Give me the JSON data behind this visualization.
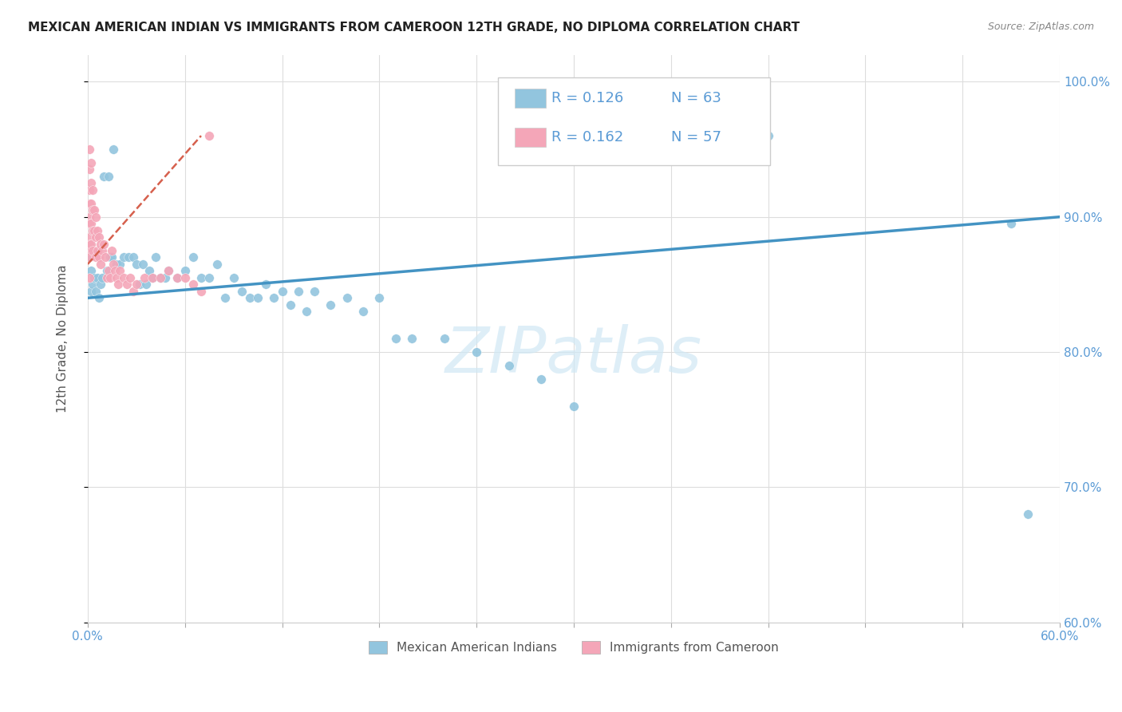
{
  "title": "MEXICAN AMERICAN INDIAN VS IMMIGRANTS FROM CAMEROON 12TH GRADE, NO DIPLOMA CORRELATION CHART",
  "source": "Source: ZipAtlas.com",
  "ylabel": "12th Grade, No Diploma",
  "legend_blue_r": "R = 0.126",
  "legend_blue_n": "N = 63",
  "legend_pink_r": "R = 0.162",
  "legend_pink_n": "N = 57",
  "blue_color": "#92c5de",
  "pink_color": "#f4a6b8",
  "blue_line_color": "#4393c3",
  "pink_line_color": "#d6604d",
  "watermark_color": "#d0e8f5",
  "xlim": [
    0.0,
    0.6
  ],
  "ylim": [
    0.6,
    1.02
  ],
  "blue_scatter_x": [
    0.001,
    0.002,
    0.002,
    0.003,
    0.004,
    0.005,
    0.006,
    0.007,
    0.008,
    0.009,
    0.01,
    0.012,
    0.013,
    0.014,
    0.015,
    0.016,
    0.018,
    0.02,
    0.022,
    0.025,
    0.028,
    0.03,
    0.032,
    0.034,
    0.036,
    0.038,
    0.04,
    0.042,
    0.045,
    0.048,
    0.05,
    0.055,
    0.06,
    0.065,
    0.07,
    0.075,
    0.08,
    0.085,
    0.09,
    0.095,
    0.1,
    0.105,
    0.11,
    0.115,
    0.12,
    0.125,
    0.13,
    0.135,
    0.14,
    0.15,
    0.16,
    0.17,
    0.18,
    0.19,
    0.2,
    0.22,
    0.24,
    0.26,
    0.28,
    0.3,
    0.42,
    0.57,
    0.58
  ],
  "blue_scatter_y": [
    0.87,
    0.845,
    0.86,
    0.85,
    0.855,
    0.845,
    0.855,
    0.84,
    0.85,
    0.855,
    0.93,
    0.86,
    0.93,
    0.87,
    0.87,
    0.95,
    0.865,
    0.865,
    0.87,
    0.87,
    0.87,
    0.865,
    0.85,
    0.865,
    0.85,
    0.86,
    0.855,
    0.87,
    0.855,
    0.855,
    0.86,
    0.855,
    0.86,
    0.87,
    0.855,
    0.855,
    0.865,
    0.84,
    0.855,
    0.845,
    0.84,
    0.84,
    0.85,
    0.84,
    0.845,
    0.835,
    0.845,
    0.83,
    0.845,
    0.835,
    0.84,
    0.83,
    0.84,
    0.81,
    0.81,
    0.81,
    0.8,
    0.79,
    0.78,
    0.76,
    0.96,
    0.895,
    0.68
  ],
  "pink_scatter_x": [
    0.001,
    0.001,
    0.001,
    0.001,
    0.001,
    0.001,
    0.001,
    0.001,
    0.001,
    0.001,
    0.001,
    0.002,
    0.002,
    0.002,
    0.002,
    0.002,
    0.003,
    0.003,
    0.003,
    0.003,
    0.004,
    0.004,
    0.005,
    0.005,
    0.005,
    0.006,
    0.006,
    0.007,
    0.007,
    0.008,
    0.008,
    0.009,
    0.01,
    0.011,
    0.012,
    0.013,
    0.014,
    0.015,
    0.016,
    0.017,
    0.018,
    0.019,
    0.02,
    0.022,
    0.024,
    0.026,
    0.028,
    0.03,
    0.035,
    0.04,
    0.045,
    0.05,
    0.055,
    0.06,
    0.065,
    0.07,
    0.075
  ],
  "pink_scatter_y": [
    0.95,
    0.935,
    0.92,
    0.91,
    0.9,
    0.895,
    0.885,
    0.88,
    0.875,
    0.87,
    0.855,
    0.94,
    0.925,
    0.91,
    0.895,
    0.88,
    0.92,
    0.905,
    0.89,
    0.875,
    0.905,
    0.89,
    0.9,
    0.885,
    0.87,
    0.89,
    0.875,
    0.885,
    0.87,
    0.88,
    0.865,
    0.875,
    0.88,
    0.87,
    0.855,
    0.86,
    0.855,
    0.875,
    0.865,
    0.86,
    0.855,
    0.85,
    0.86,
    0.855,
    0.85,
    0.855,
    0.845,
    0.85,
    0.855,
    0.855,
    0.855,
    0.86,
    0.855,
    0.855,
    0.85,
    0.845,
    0.96
  ],
  "blue_trend_x": [
    0.0,
    0.6
  ],
  "blue_trend_y": [
    0.84,
    0.9
  ],
  "pink_trend_x": [
    0.0,
    0.07
  ],
  "pink_trend_y": [
    0.865,
    0.96
  ]
}
